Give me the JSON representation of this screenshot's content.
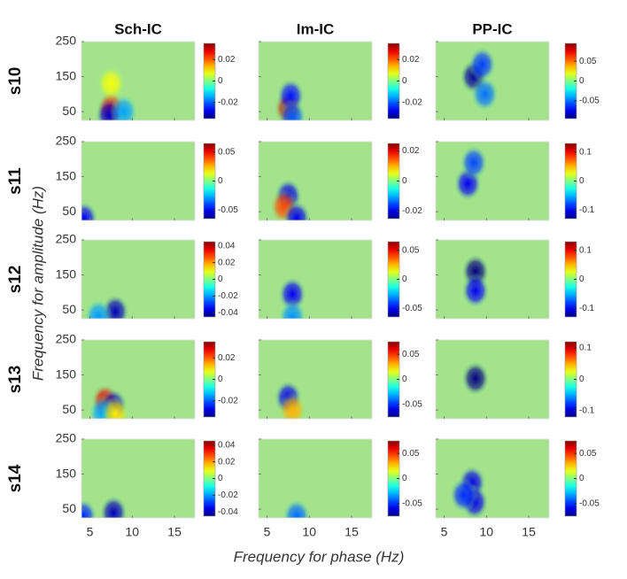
{
  "column_titles": [
    "Sch-IC",
    "Im-IC",
    "PP-IC"
  ],
  "row_labels": [
    "s10",
    "s11",
    "s12",
    "s13",
    "s14"
  ],
  "xlabel": "Frequency for phase (Hz)",
  "ylabel": "Frequency for amplitude (Hz)",
  "chart_data": [
    {
      "type": "heatmap",
      "xlim": [
        4,
        17.4
      ],
      "xticks": [
        5,
        10,
        15
      ],
      "ylim": [
        25,
        250
      ],
      "yticks": [
        50,
        150,
        250
      ],
      "clim": [
        -0.035,
        0.035
      ],
      "cticks": [
        -0.02,
        0,
        0.02
      ],
      "peaks": [
        {
          "x": 7.5,
          "y": 60,
          "value": 0.025
        },
        {
          "x": 7.3,
          "y": 40,
          "value": -0.03
        },
        {
          "x": 9,
          "y": 50,
          "value": -0.015
        },
        {
          "x": 7.5,
          "y": 130,
          "value": 0.008
        }
      ]
    },
    {
      "type": "heatmap",
      "xlim": [
        4,
        17.4
      ],
      "xticks": [
        5,
        10,
        15
      ],
      "ylim": [
        25,
        250
      ],
      "yticks": [
        50,
        150,
        250
      ],
      "clim": [
        -0.035,
        0.035
      ],
      "cticks": [
        -0.02,
        0,
        0.02
      ],
      "peaks": [
        {
          "x": 7.5,
          "y": 60,
          "value": 0.03
        },
        {
          "x": 7.8,
          "y": 95,
          "value": -0.025
        },
        {
          "x": 8,
          "y": 35,
          "value": -0.02
        }
      ]
    },
    {
      "type": "heatmap",
      "xlim": [
        4,
        17.4
      ],
      "xticks": [
        5,
        10,
        15
      ],
      "ylim": [
        25,
        250
      ],
      "yticks": [
        50,
        150,
        250
      ],
      "clim": [
        -0.095,
        0.095
      ],
      "cticks": [
        -0.05,
        0,
        0.05
      ],
      "peaks": [
        {
          "x": 8.5,
          "y": 150,
          "value": -0.09
        },
        {
          "x": 9.5,
          "y": 185,
          "value": -0.06
        },
        {
          "x": 9.8,
          "y": 100,
          "value": -0.05
        }
      ]
    },
    {
      "type": "heatmap",
      "xlim": [
        4,
        17.4
      ],
      "xticks": [
        5,
        10,
        15
      ],
      "ylim": [
        25,
        250
      ],
      "yticks": [
        50,
        150,
        250
      ],
      "clim": [
        -0.065,
        0.065
      ],
      "cticks": [
        -0.05,
        0,
        0.05
      ],
      "peaks": [
        {
          "x": 4.3,
          "y": 30,
          "value": -0.05
        }
      ]
    },
    {
      "type": "heatmap",
      "xlim": [
        4,
        17.4
      ],
      "xticks": [
        5,
        10,
        15
      ],
      "ylim": [
        25,
        250
      ],
      "yticks": [
        50,
        150,
        250
      ],
      "clim": [
        -0.025,
        0.025
      ],
      "cticks": [
        -0.02,
        0,
        0.02
      ],
      "peaks": [
        {
          "x": 7.5,
          "y": 95,
          "value": -0.02
        },
        {
          "x": 7,
          "y": 65,
          "value": 0.015
        },
        {
          "x": 8.5,
          "y": 32,
          "value": -0.02
        }
      ]
    },
    {
      "type": "heatmap",
      "xlim": [
        4,
        17.4
      ],
      "xticks": [
        5,
        10,
        15
      ],
      "ylim": [
        25,
        250
      ],
      "yticks": [
        50,
        150,
        250
      ],
      "clim": [
        -0.13,
        0.13
      ],
      "cticks": [
        -0.1,
        0,
        0.1
      ],
      "peaks": [
        {
          "x": 7.8,
          "y": 130,
          "value": -0.1
        },
        {
          "x": 8.5,
          "y": 190,
          "value": -0.08
        }
      ]
    },
    {
      "type": "heatmap",
      "xlim": [
        4,
        17.4
      ],
      "xticks": [
        5,
        10,
        15
      ],
      "ylim": [
        25,
        250
      ],
      "yticks": [
        50,
        150,
        250
      ],
      "clim": [
        -0.045,
        0.045
      ],
      "cticks": [
        -0.04,
        -0.02,
        0,
        0.02,
        0.04
      ],
      "peaks": [
        {
          "x": 8,
          "y": 45,
          "value": -0.04
        },
        {
          "x": 6,
          "y": 32,
          "value": -0.02
        }
      ]
    },
    {
      "type": "heatmap",
      "xlim": [
        4,
        17.4
      ],
      "xticks": [
        5,
        10,
        15
      ],
      "ylim": [
        25,
        250
      ],
      "yticks": [
        50,
        150,
        250
      ],
      "clim": [
        -0.065,
        0.065
      ],
      "cticks": [
        -0.05,
        0,
        0.05
      ],
      "peaks": [
        {
          "x": 8,
          "y": 95,
          "value": -0.05
        },
        {
          "x": 8,
          "y": 30,
          "value": -0.03
        }
      ]
    },
    {
      "type": "heatmap",
      "xlim": [
        4,
        17.4
      ],
      "xticks": [
        5,
        10,
        15
      ],
      "ylim": [
        25,
        250
      ],
      "yticks": [
        50,
        150,
        250
      ],
      "clim": [
        -0.13,
        0.13
      ],
      "cticks": [
        -0.1,
        0,
        0.1
      ],
      "peaks": [
        {
          "x": 8.7,
          "y": 160,
          "value": -0.13
        },
        {
          "x": 8.7,
          "y": 105,
          "value": -0.1
        }
      ]
    },
    {
      "type": "heatmap",
      "xlim": [
        4,
        17.4
      ],
      "xticks": [
        5,
        10,
        15
      ],
      "ylim": [
        25,
        250
      ],
      "yticks": [
        50,
        150,
        250
      ],
      "clim": [
        -0.035,
        0.035
      ],
      "cticks": [
        -0.02,
        0,
        0.02
      ],
      "peaks": [
        {
          "x": 6.8,
          "y": 75,
          "value": 0.028
        },
        {
          "x": 7.8,
          "y": 62,
          "value": -0.03
        },
        {
          "x": 6.5,
          "y": 42,
          "value": -0.015
        },
        {
          "x": 8,
          "y": 40,
          "value": 0.01
        }
      ]
    },
    {
      "type": "heatmap",
      "xlim": [
        4,
        17.4
      ],
      "xticks": [
        5,
        10,
        15
      ],
      "ylim": [
        25,
        250
      ],
      "yticks": [
        50,
        150,
        250
      ],
      "clim": [
        -0.075,
        0.075
      ],
      "cticks": [
        -0.05,
        0,
        0.05
      ],
      "peaks": [
        {
          "x": 7.5,
          "y": 85,
          "value": -0.06
        },
        {
          "x": 8,
          "y": 50,
          "value": 0.03
        }
      ]
    },
    {
      "type": "heatmap",
      "xlim": [
        4,
        17.4
      ],
      "xticks": [
        5,
        10,
        15
      ],
      "ylim": [
        25,
        250
      ],
      "yticks": [
        50,
        150,
        250
      ],
      "clim": [
        -0.12,
        0.12
      ],
      "cticks": [
        -0.1,
        0,
        0.1
      ],
      "peaks": [
        {
          "x": 8.7,
          "y": 140,
          "value": -0.12
        }
      ]
    },
    {
      "type": "heatmap",
      "xlim": [
        4,
        17.4
      ],
      "xticks": [
        5,
        10,
        15
      ],
      "ylim": [
        25,
        250
      ],
      "yticks": [
        50,
        150,
        250
      ],
      "clim": [
        -0.045,
        0.045
      ],
      "cticks": [
        -0.04,
        -0.02,
        0,
        0.02,
        0.04
      ],
      "peaks": [
        {
          "x": 7.8,
          "y": 40,
          "value": -0.04
        },
        {
          "x": 4.2,
          "y": 30,
          "value": -0.03
        }
      ]
    },
    {
      "type": "heatmap",
      "xlim": [
        4,
        17.4
      ],
      "xticks": [
        5,
        10,
        15
      ],
      "ylim": [
        25,
        250
      ],
      "yticks": [
        50,
        150,
        250
      ],
      "clim": [
        -0.075,
        0.075
      ],
      "cticks": [
        -0.05,
        0,
        0.05
      ],
      "peaks": [
        {
          "x": 8.5,
          "y": 30,
          "value": -0.04
        }
      ]
    },
    {
      "type": "heatmap",
      "xlim": [
        4,
        17.4
      ],
      "xticks": [
        5,
        10,
        15
      ],
      "ylim": [
        25,
        250
      ],
      "yticks": [
        50,
        150,
        250
      ],
      "clim": [
        -0.075,
        0.075
      ],
      "cticks": [
        -0.05,
        0,
        0.05
      ],
      "peaks": [
        {
          "x": 8.3,
          "y": 125,
          "value": -0.06
        },
        {
          "x": 8.6,
          "y": 70,
          "value": -0.06
        },
        {
          "x": 7.3,
          "y": 90,
          "value": -0.05
        }
      ]
    }
  ]
}
